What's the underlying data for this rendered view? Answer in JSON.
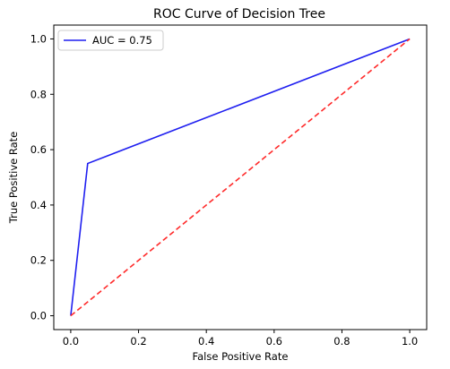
{
  "chart_data": {
    "type": "line",
    "title": "ROC Curve of Decision Tree",
    "xlabel": "False Positive Rate",
    "ylabel": "True Positive Rate",
    "xlim": [
      -0.05,
      1.05
    ],
    "ylim": [
      -0.05,
      1.05
    ],
    "x_ticks": [
      0.0,
      0.2,
      0.4,
      0.6,
      0.8,
      1.0
    ],
    "x_tick_labels": [
      "0.0",
      "0.2",
      "0.4",
      "0.6",
      "0.8",
      "1.0"
    ],
    "y_ticks": [
      0.0,
      0.2,
      0.4,
      0.6,
      0.8,
      1.0
    ],
    "y_tick_labels": [
      "0.0",
      "0.2",
      "0.4",
      "0.6",
      "0.8",
      "1.0"
    ],
    "grid": false,
    "legend_position": "top-left",
    "series": [
      {
        "name": "AUC = 0.75",
        "color": "#1f1ff0",
        "style": "solid",
        "x": [
          0.0,
          0.05,
          1.0
        ],
        "y": [
          0.0,
          0.55,
          1.0
        ]
      },
      {
        "color": "#ff2a2a",
        "style": "dashed",
        "x": [
          0.0,
          1.0
        ],
        "y": [
          0.0,
          1.0
        ]
      }
    ]
  }
}
